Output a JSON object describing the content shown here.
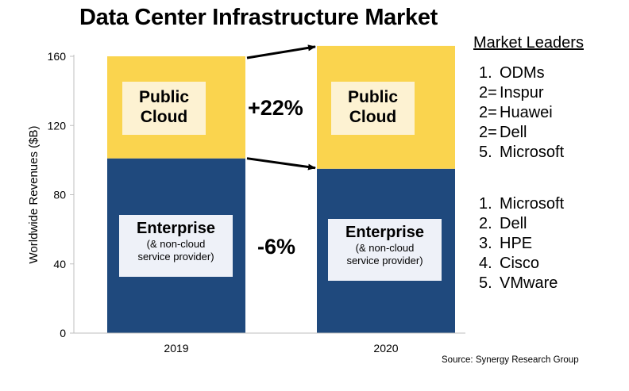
{
  "title": "Data Center Infrastructure Market",
  "market_leaders": {
    "heading": "Market Leaders",
    "public_cloud": [
      {
        "rank": "1.",
        "name": "ODMs"
      },
      {
        "rank": "2=",
        "name": "Inspur"
      },
      {
        "rank": "2=",
        "name": "Huawei"
      },
      {
        "rank": "2=",
        "name": "Dell"
      },
      {
        "rank": "5.",
        "name": "Microsoft"
      }
    ],
    "enterprise": [
      {
        "rank": "1.",
        "name": "Microsoft"
      },
      {
        "rank": "2.",
        "name": "Dell"
      },
      {
        "rank": "3.",
        "name": "HPE"
      },
      {
        "rank": "4.",
        "name": "Cisco"
      },
      {
        "rank": "5.",
        "name": "VMware"
      }
    ]
  },
  "source": "Source: Synergy Research Group",
  "labels": {
    "public_cloud_line1": "Public",
    "public_cloud_line2": "Cloud",
    "enterprise_main": "Enterprise",
    "enterprise_sub1": "(& non-cloud",
    "enterprise_sub2": "service provider)"
  },
  "changes": {
    "public_cloud": "+22%",
    "enterprise": "-6%"
  },
  "colors": {
    "enterprise": "#1f497d",
    "public_cloud": "#fad44e",
    "axis": "#bfbfbf",
    "arrow": "#000000"
  },
  "chart_data": {
    "type": "bar",
    "stacked": true,
    "categories": [
      "2019",
      "2020"
    ],
    "series": [
      {
        "name": "Enterprise",
        "values": [
          101,
          95
        ]
      },
      {
        "name": "Public Cloud",
        "values": [
          59,
          71
        ]
      }
    ],
    "xlabel": "",
    "ylabel": "Worldwide Revenues ($B)",
    "ylim": [
      0,
      160
    ],
    "yticks": [
      0,
      40,
      80,
      120,
      160
    ],
    "grid": false,
    "legend": "none"
  }
}
